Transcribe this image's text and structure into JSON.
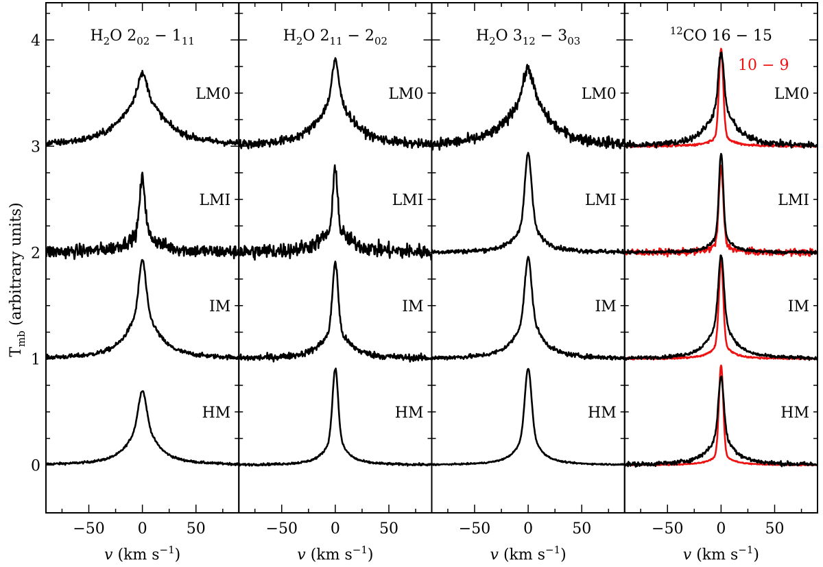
{
  "chart_data": {
    "type": "line",
    "description_note": "Four stacked-spectra panels sharing a y axis; each panel shows four averaged line profiles offset vertically by 1 unit (HM at 0, IM at 1, LMI at 2, LM0 at 3).",
    "ylabel": {
      "main": "T",
      "sub": "mb",
      "rest": " (arbitrary units)"
    },
    "xlabel": {
      "italic": "v",
      "rest": " (km s",
      "sup": "−1",
      "end": ")"
    },
    "xlim": [
      -90,
      90
    ],
    "ylim": [
      -0.45,
      4.35
    ],
    "xticks": [
      -50,
      0,
      50
    ],
    "xtick_labels": [
      "−50",
      "0",
      "50"
    ],
    "yticks": [
      0,
      1,
      2,
      3,
      4
    ],
    "ytick_labels": [
      "0",
      "1",
      "2",
      "3",
      "4"
    ],
    "classes": [
      "HM",
      "IM",
      "LMI",
      "LM0"
    ],
    "offsets": {
      "HM": 0,
      "IM": 1,
      "LMI": 2,
      "LM0": 3
    },
    "panels": [
      {
        "title": {
          "pre": "H",
          "pre_sub": "2",
          "mid": "O 2",
          "sub1": "02",
          "dash": " − 1",
          "sub2": "11",
          "sup": ""
        },
        "series": [
          {
            "name": "HM",
            "color": "#000000",
            "peak": 0.7,
            "narrow_amp": 0.3,
            "narrow_w": 3.5,
            "broad_amp": 0.4,
            "broad_w": 14,
            "noise": 0.01
          },
          {
            "name": "IM",
            "color": "#000000",
            "peak": 0.93,
            "narrow_amp": 0.45,
            "narrow_w": 3.0,
            "broad_amp": 0.48,
            "broad_w": 15,
            "noise": 0.02
          },
          {
            "name": "LMI",
            "color": "#000000",
            "peak": 0.7,
            "narrow_amp": 0.52,
            "narrow_w": 2.5,
            "broad_amp": 0.18,
            "broad_w": 16,
            "noise": 0.06
          },
          {
            "name": "LM0",
            "color": "#000000",
            "peak": 0.68,
            "narrow_amp": 0.2,
            "narrow_w": 4.0,
            "broad_amp": 0.48,
            "broad_w": 22,
            "noise": 0.03
          }
        ]
      },
      {
        "title": {
          "pre": "H",
          "pre_sub": "2",
          "mid": "O 2",
          "sub1": "11",
          "dash": " − 2",
          "sub2": "02",
          "sup": ""
        },
        "series": [
          {
            "name": "HM",
            "color": "#000000",
            "peak": 0.91,
            "narrow_amp": 0.63,
            "narrow_w": 2.5,
            "broad_amp": 0.28,
            "broad_w": 10,
            "noise": 0.01
          },
          {
            "name": "IM",
            "color": "#000000",
            "peak": 0.91,
            "narrow_amp": 0.63,
            "narrow_w": 2.5,
            "broad_amp": 0.28,
            "broad_w": 14,
            "noise": 0.03
          },
          {
            "name": "LMI",
            "color": "#000000",
            "peak": 0.82,
            "narrow_amp": 0.6,
            "narrow_w": 2.0,
            "broad_amp": 0.22,
            "broad_w": 15,
            "noise": 0.07
          },
          {
            "name": "LM0",
            "color": "#000000",
            "peak": 0.8,
            "narrow_amp": 0.35,
            "narrow_w": 3.0,
            "broad_amp": 0.45,
            "broad_w": 18,
            "noise": 0.04
          }
        ]
      },
      {
        "title": {
          "pre": "H",
          "pre_sub": "2",
          "mid": "O 3",
          "sub1": "12",
          "dash": " − 3",
          "sub2": "03",
          "sup": ""
        },
        "series": [
          {
            "name": "HM",
            "color": "#000000",
            "peak": 0.91,
            "narrow_amp": 0.6,
            "narrow_w": 3.0,
            "broad_amp": 0.31,
            "broad_w": 11,
            "noise": 0.006
          },
          {
            "name": "IM",
            "color": "#000000",
            "peak": 0.95,
            "narrow_amp": 0.55,
            "narrow_w": 3.0,
            "broad_amp": 0.4,
            "broad_w": 13,
            "noise": 0.02
          },
          {
            "name": "LMI",
            "color": "#000000",
            "peak": 0.93,
            "narrow_amp": 0.63,
            "narrow_w": 3.0,
            "broad_amp": 0.3,
            "broad_w": 12,
            "noise": 0.02
          },
          {
            "name": "LM0",
            "color": "#000000",
            "peak": 0.73,
            "narrow_amp": 0.23,
            "narrow_w": 4.0,
            "broad_amp": 0.5,
            "broad_w": 20,
            "noise": 0.05
          }
        ]
      },
      {
        "title": {
          "pre": "",
          "pre_sub": "",
          "mid": "CO 16 − 15",
          "sub1": "",
          "dash": "",
          "sub2": "",
          "sup": "12"
        },
        "red_label": "10 − 9",
        "series": [
          {
            "name": "HM",
            "color": "#000000",
            "peak": 0.83,
            "narrow_amp": 0.55,
            "narrow_w": 2.5,
            "broad_amp": 0.28,
            "broad_w": 13,
            "noise": 0.02
          },
          {
            "name": "IM",
            "color": "#000000",
            "peak": 0.97,
            "narrow_amp": 0.6,
            "narrow_w": 2.5,
            "broad_amp": 0.37,
            "broad_w": 12,
            "noise": 0.015
          },
          {
            "name": "LMI",
            "color": "#000000",
            "peak": 0.93,
            "narrow_amp": 0.75,
            "narrow_w": 2.0,
            "broad_amp": 0.18,
            "broad_w": 9,
            "noise": 0.015
          },
          {
            "name": "LM0",
            "color": "#000000",
            "peak": 0.88,
            "narrow_amp": 0.5,
            "narrow_w": 2.5,
            "broad_amp": 0.38,
            "broad_w": 14,
            "noise": 0.03
          },
          {
            "name": "HM 10−9",
            "color": "#ee1111",
            "offset_of": "HM",
            "peak": 0.94,
            "narrow_amp": 0.84,
            "narrow_w": 2.0,
            "broad_amp": 0.1,
            "broad_w": 10,
            "noise": 0.005
          },
          {
            "name": "IM 10−9",
            "color": "#ee1111",
            "offset_of": "IM",
            "peak": 0.93,
            "narrow_amp": 0.78,
            "narrow_w": 2.0,
            "broad_amp": 0.15,
            "broad_w": 9,
            "noise": 0.008
          },
          {
            "name": "LMI 10−9",
            "color": "#ee1111",
            "offset_of": "LMI",
            "peak": 0.8,
            "narrow_amp": 0.7,
            "narrow_w": 2.0,
            "broad_amp": 0.1,
            "broad_w": 8,
            "noise": 0.03
          },
          {
            "name": "LM0 10−9",
            "color": "#ee1111",
            "offset_of": "LM0",
            "peak": 0.92,
            "narrow_amp": 0.82,
            "narrow_w": 2.0,
            "broad_amp": 0.1,
            "broad_w": 10,
            "noise": 0.01
          }
        ]
      }
    ]
  }
}
